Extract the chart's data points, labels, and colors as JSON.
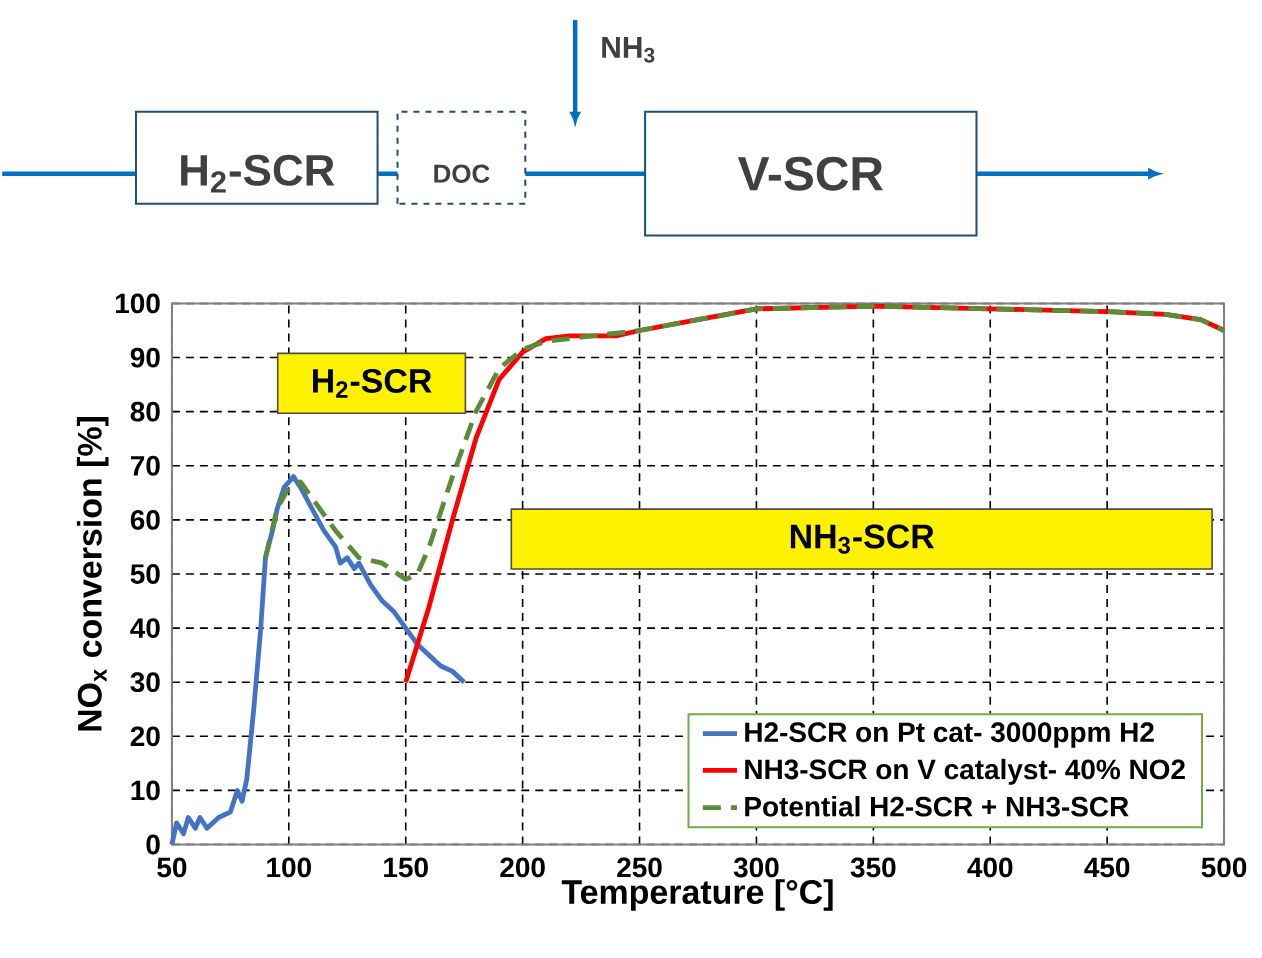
{
  "chart_data": {
    "type": "line",
    "xlabel": "Temperature [°C]",
    "ylabel": "NO$_{x}$ conversion [%]",
    "xlim": [
      50,
      500
    ],
    "ylim": [
      0,
      100
    ],
    "xticks": [
      50,
      100,
      150,
      200,
      250,
      300,
      350,
      400,
      450,
      500
    ],
    "yticks": [
      0,
      10,
      20,
      30,
      40,
      50,
      60,
      70,
      80,
      90,
      100
    ],
    "grid": true,
    "legend": "bottom right",
    "annotations": [
      "H$_{2}$-SCR",
      "NH$_{3}$-SCR",
      "H$_{2}$-SCR",
      "DOC",
      "NH$_{3}$",
      "V-SCR"
    ],
    "series": [
      {
        "name": "H2-SCR on Pt cat- 3000ppm H2",
        "color": "#4472c4",
        "line_style": "solid",
        "x": [
          50,
          52,
          55,
          57,
          60,
          62,
          65,
          70,
          75,
          78,
          80,
          82,
          85,
          88,
          90,
          93,
          95,
          98,
          100,
          102,
          105,
          110,
          115,
          120,
          122,
          125,
          128,
          130,
          135,
          140,
          145,
          150,
          155,
          160,
          165,
          170,
          175
        ],
        "values": [
          0,
          4,
          2,
          5,
          3,
          5,
          3,
          5,
          6,
          10,
          8,
          12,
          25,
          40,
          53,
          58,
          62,
          66,
          67,
          68,
          66,
          62,
          58,
          55,
          52,
          53,
          51,
          52,
          48,
          45,
          43,
          40,
          37,
          35,
          33,
          32,
          30
        ]
      },
      {
        "name": "NH3-SCR on V catalyst- 40% NO2",
        "color": "#ff0000",
        "line_style": "solid",
        "x": [
          150,
          160,
          170,
          180,
          190,
          200,
          210,
          220,
          230,
          240,
          250,
          275,
          300,
          350,
          400,
          450,
          475,
          490,
          500
        ],
        "values": [
          30,
          44,
          60,
          75,
          86,
          91,
          93.5,
          94,
          94,
          94,
          95,
          97,
          99,
          99.5,
          99,
          98.5,
          98,
          97,
          95
        ]
      },
      {
        "name": "Potential H2-SCR + NH3-SCR",
        "color": "#5b8c3a",
        "line_style": "dashed",
        "x": [
          90,
          95,
          100,
          105,
          110,
          120,
          130,
          140,
          150,
          155,
          160,
          170,
          180,
          190,
          200,
          210,
          220,
          230,
          250,
          275,
          300,
          350,
          400,
          450,
          475,
          490,
          500
        ],
        "values": [
          53,
          62,
          66,
          67,
          64,
          58,
          53,
          52,
          49,
          50,
          55,
          68,
          80,
          88,
          91.5,
          93,
          93.5,
          94,
          95,
          97,
          99,
          99.5,
          99,
          98.5,
          98,
          97,
          95
        ]
      }
    ]
  }
}
